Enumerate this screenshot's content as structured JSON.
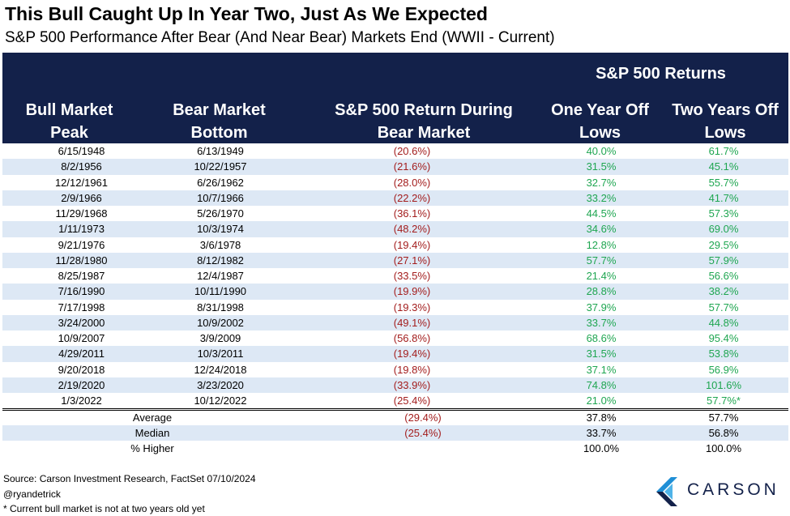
{
  "title": "This Bull Caught Up In Year Two, Just As We Expected",
  "subtitle": "S&P 500 Performance After Bear (And Near Bear) Markets End (WWII - Current)",
  "header": {
    "group_label": "S&P 500 Returns",
    "col1": [
      "Bull Market",
      "Peak"
    ],
    "col2": [
      "Bear Market",
      "Bottom"
    ],
    "col3": [
      "S&P 500 Return During",
      "Bear Market"
    ],
    "col4": [
      "One Year Off",
      "Lows"
    ],
    "col5": [
      "Two Years Off",
      "Lows"
    ]
  },
  "rows": [
    [
      "6/15/1948",
      "6/13/1949",
      "(20.6%)",
      "40.0%",
      "61.7%"
    ],
    [
      "8/2/1956",
      "10/22/1957",
      "(21.6%)",
      "31.5%",
      "45.1%"
    ],
    [
      "12/12/1961",
      "6/26/1962",
      "(28.0%)",
      "32.7%",
      "55.7%"
    ],
    [
      "2/9/1966",
      "10/7/1966",
      "(22.2%)",
      "33.2%",
      "41.7%"
    ],
    [
      "11/29/1968",
      "5/26/1970",
      "(36.1%)",
      "44.5%",
      "57.3%"
    ],
    [
      "1/11/1973",
      "10/3/1974",
      "(48.2%)",
      "34.6%",
      "69.0%"
    ],
    [
      "9/21/1976",
      "3/6/1978",
      "(19.4%)",
      "12.8%",
      "29.5%"
    ],
    [
      "11/28/1980",
      "8/12/1982",
      "(27.1%)",
      "57.7%",
      "57.9%"
    ],
    [
      "8/25/1987",
      "12/4/1987",
      "(33.5%)",
      "21.4%",
      "56.6%"
    ],
    [
      "7/16/1990",
      "10/11/1990",
      "(19.9%)",
      "28.8%",
      "38.2%"
    ],
    [
      "7/17/1998",
      "8/31/1998",
      "(19.3%)",
      "37.9%",
      "57.7%"
    ],
    [
      "3/24/2000",
      "10/9/2002",
      "(49.1%)",
      "33.7%",
      "44.8%"
    ],
    [
      "10/9/2007",
      "3/9/2009",
      "(56.8%)",
      "68.6%",
      "95.4%"
    ],
    [
      "4/29/2011",
      "10/3/2011",
      "(19.4%)",
      "31.5%",
      "53.8%"
    ],
    [
      "9/20/2018",
      "12/24/2018",
      "(19.8%)",
      "37.1%",
      "56.9%"
    ],
    [
      "2/19/2020",
      "3/23/2020",
      "(33.9%)",
      "74.8%",
      "101.6%"
    ],
    [
      "1/3/2022",
      "10/12/2022",
      "(25.4%)",
      "21.0%",
      "57.7%*"
    ]
  ],
  "summary": [
    [
      "Average",
      "(29.4%)",
      "37.8%",
      "57.7%"
    ],
    [
      "Median",
      "(25.4%)",
      "33.7%",
      "56.8%"
    ],
    [
      "% Higher",
      "",
      "100.0%",
      "100.0%"
    ]
  ],
  "footer": {
    "source": "Source: Carson Investment Research, FactSet 07/10/2024",
    "handle": "@ryandetrick",
    "note": "* Current bull market is not at two years old yet"
  },
  "logo": {
    "text": "CARSON"
  },
  "colors": {
    "header_bg": "#13214a",
    "row_alt": "#dde8f5",
    "negative": "#a31d1d",
    "positive": "#1fa651"
  }
}
